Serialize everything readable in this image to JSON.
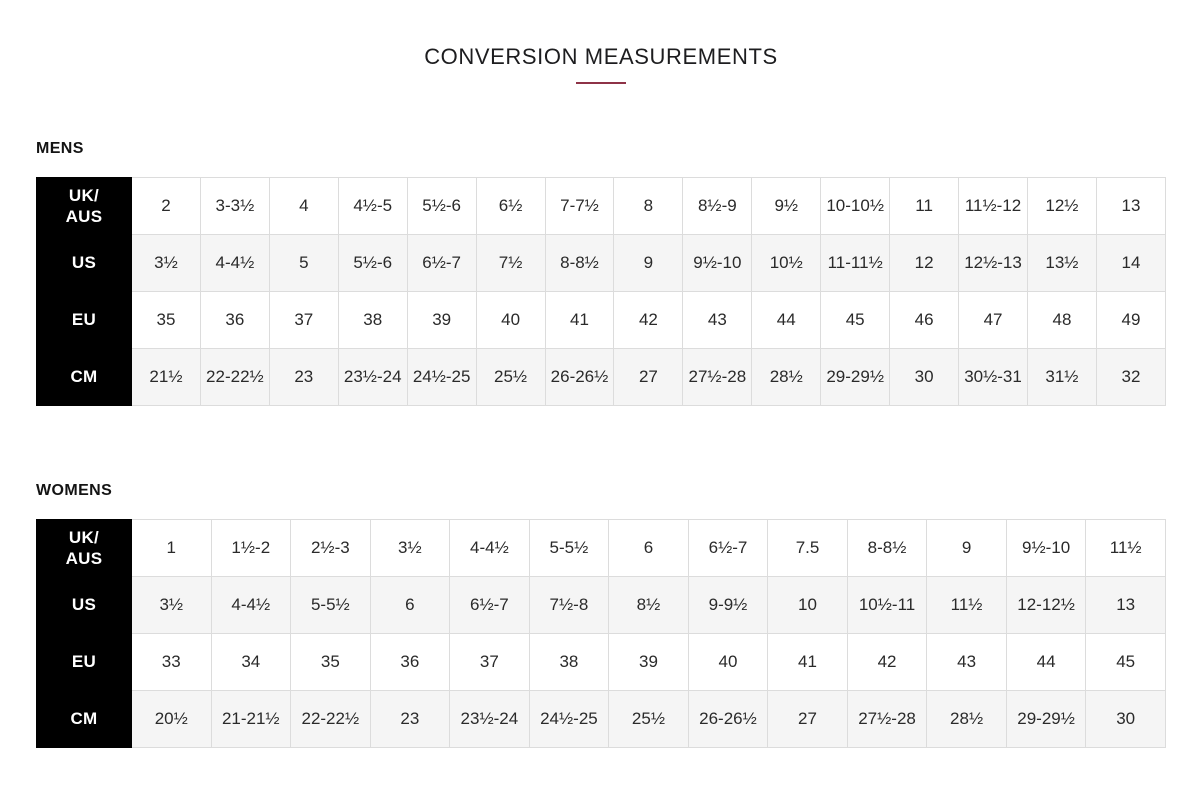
{
  "header": {
    "title": "CONVERSION MEASUREMENTS"
  },
  "theme": {
    "accent_color": "#8e3347",
    "label_cell_bg": "#000000",
    "label_cell_text": "#ffffff",
    "alt_row_bg": "#f5f5f5",
    "grid_line_color": "#dcdcdc"
  },
  "tables": [
    {
      "heading": "MENS",
      "rows": [
        {
          "label": "UK/\nAUS",
          "values": [
            "2",
            "3-3½",
            "4",
            "4½-5",
            "5½-6",
            "6½",
            "7-7½",
            "8",
            "8½-9",
            "9½",
            "10-10½",
            "11",
            "11½-12",
            "12½",
            "13"
          ]
        },
        {
          "label": "US",
          "values": [
            "3½",
            "4-4½",
            "5",
            "5½-6",
            "6½-7",
            "7½",
            "8-8½",
            "9",
            "9½-10",
            "10½",
            "11-11½",
            "12",
            "12½-13",
            "13½",
            "14"
          ]
        },
        {
          "label": "EU",
          "values": [
            "35",
            "36",
            "37",
            "38",
            "39",
            "40",
            "41",
            "42",
            "43",
            "44",
            "45",
            "46",
            "47",
            "48",
            "49"
          ]
        },
        {
          "label": "CM",
          "values": [
            "21½",
            "22-22½",
            "23",
            "23½-24",
            "24½-25",
            "25½",
            "26-26½",
            "27",
            "27½-28",
            "28½",
            "29-29½",
            "30",
            "30½-31",
            "31½",
            "32"
          ]
        }
      ]
    },
    {
      "heading": "WOMENS",
      "rows": [
        {
          "label": "UK/\nAUS",
          "values": [
            "1",
            "1½-2",
            "2½-3",
            "3½",
            "4-4½",
            "5-5½",
            "6",
            "6½-7",
            "7.5",
            "8-8½",
            "9",
            "9½-10",
            "11½"
          ]
        },
        {
          "label": "US",
          "values": [
            "3½",
            "4-4½",
            "5-5½",
            "6",
            "6½-7",
            "7½-8",
            "8½",
            "9-9½",
            "10",
            "10½-11",
            "11½",
            "12-12½",
            "13"
          ]
        },
        {
          "label": "EU",
          "values": [
            "33",
            "34",
            "35",
            "36",
            "37",
            "38",
            "39",
            "40",
            "41",
            "42",
            "43",
            "44",
            "45"
          ]
        },
        {
          "label": "CM",
          "values": [
            "20½",
            "21-21½",
            "22-22½",
            "23",
            "23½-24",
            "24½-25",
            "25½",
            "26-26½",
            "27",
            "27½-28",
            "28½",
            "29-29½",
            "30"
          ]
        }
      ]
    }
  ]
}
